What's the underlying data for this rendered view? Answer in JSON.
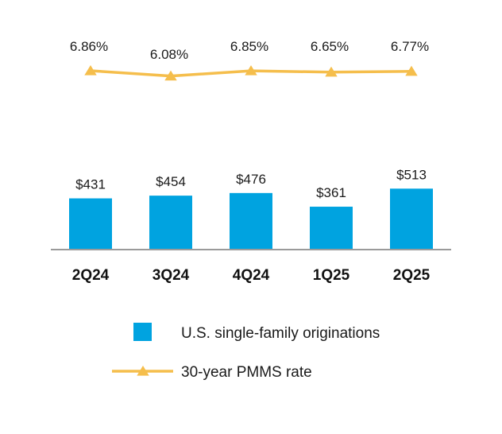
{
  "chart_data": {
    "type": "bar",
    "categories": [
      "2Q24",
      "3Q24",
      "4Q24",
      "1Q25",
      "2Q25"
    ],
    "series": [
      {
        "name": "U.S. single-family originations",
        "type": "bar",
        "values": [
          431,
          454,
          476,
          361,
          513
        ],
        "labels": [
          "$431",
          "$454",
          "$476",
          "$361",
          "$513"
        ],
        "color": "#00a3e0"
      },
      {
        "name": "30-year PMMS rate",
        "type": "line",
        "marker": "triangle",
        "values": [
          6.86,
          6.08,
          6.85,
          6.65,
          6.77
        ],
        "labels": [
          "6.86%",
          "6.08%",
          "6.85%",
          "6.65%",
          "6.77%"
        ],
        "color": "#f5be4c"
      }
    ],
    "legend": {
      "position": "bottom",
      "entries": [
        "U.S. single-family originations",
        "30-year PMMS rate"
      ]
    },
    "axis_color": "#9a9a9a"
  }
}
